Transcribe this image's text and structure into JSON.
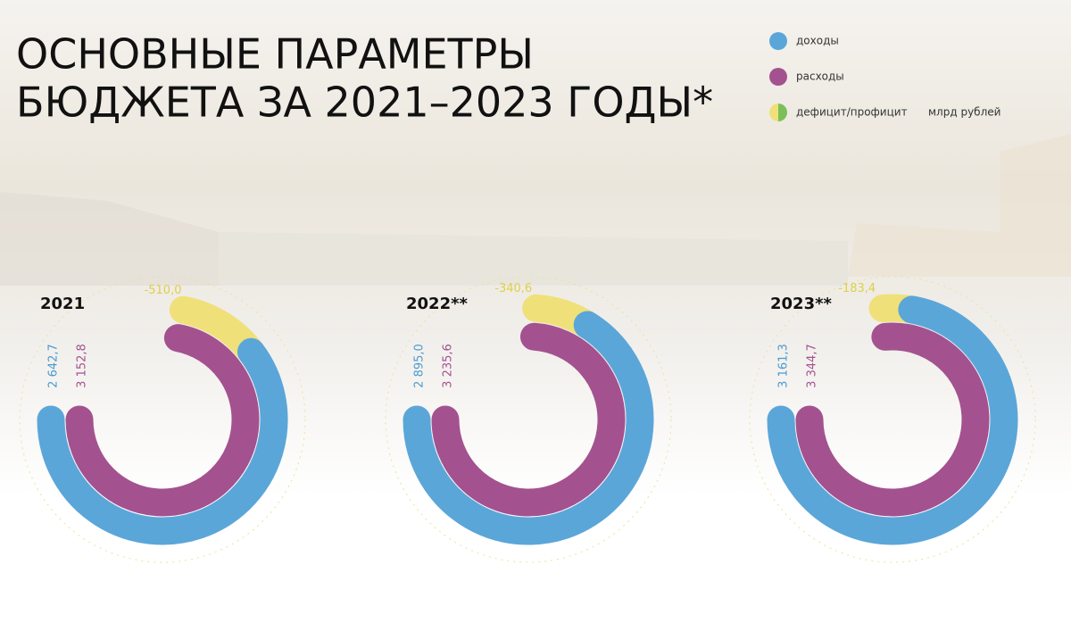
{
  "title": [
    "ОСНОВНЫЕ ПАРАМЕТРЫ",
    "БЮДЖЕТА ЗА 2021–2023 ГОДЫ*"
  ],
  "unit": "млрд рублей",
  "chart_data": [
    {
      "type": "radial-arc",
      "title": "2021",
      "series": [
        {
          "name": "доходы",
          "color": "#5ba6d9",
          "values": [
            2642.7
          ],
          "value_labels": [
            "2 642,7"
          ]
        },
        {
          "name": "расходы",
          "color": "#a3528f",
          "values": [
            3152.8
          ],
          "value_labels": [
            "3 152,8"
          ]
        },
        {
          "name": "дефицит/профицит",
          "color": "#f0e07a",
          "values": [
            -510.0
          ],
          "value_labels": [
            "-510,0"
          ]
        }
      ]
    },
    {
      "type": "radial-arc",
      "title": "2022**",
      "series": [
        {
          "name": "доходы",
          "color": "#5ba6d9",
          "values": [
            2895.0
          ],
          "value_labels": [
            "2 895,0"
          ]
        },
        {
          "name": "расходы",
          "color": "#a3528f",
          "values": [
            3235.6
          ],
          "value_labels": [
            "3 235,6"
          ]
        },
        {
          "name": "дефицит/профицит",
          "color": "#f0e07a",
          "values": [
            -340.6
          ],
          "value_labels": [
            "-340,6"
          ]
        }
      ]
    },
    {
      "type": "radial-arc",
      "title": "2023**",
      "series": [
        {
          "name": "доходы",
          "color": "#5ba6d9",
          "values": [
            3161.3
          ],
          "value_labels": [
            "3 161,3"
          ]
        },
        {
          "name": "расходы",
          "color": "#a3528f",
          "values": [
            3344.7
          ],
          "value_labels": [
            "3 344,7"
          ]
        },
        {
          "name": "дефицит/профицит",
          "color": "#f0e07a",
          "values": [
            -183.4
          ],
          "value_labels": [
            "-183,4"
          ]
        }
      ]
    }
  ]
}
